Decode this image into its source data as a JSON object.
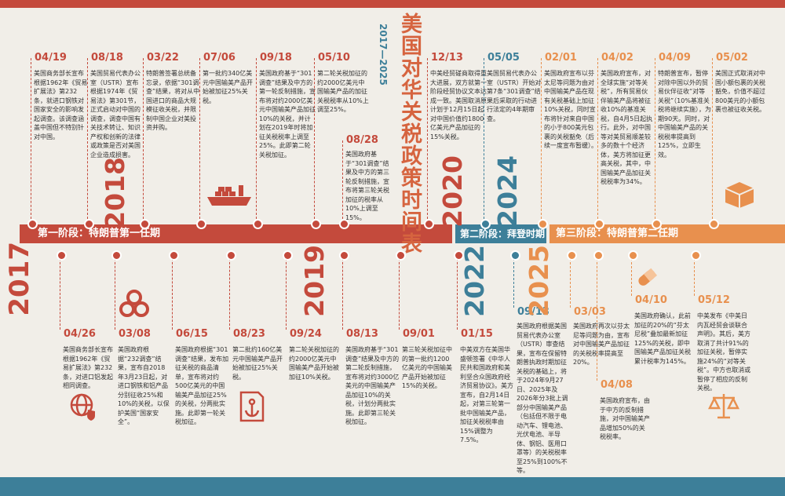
{
  "title": "美国对华关税政策时间表",
  "subtitle": "2017—2025",
  "colors": {
    "red": "#c44a3c",
    "blue": "#3d7f99",
    "orange": "#e8904e"
  },
  "phases": [
    {
      "label": "第一阶段：特朗普第一任期",
      "color": "#c44a3c"
    },
    {
      "label": "第二阶段：拜登时期",
      "color": "#3d7f99"
    },
    {
      "label": "第三阶段：特朗普第二任期",
      "color": "#e8904e"
    }
  ],
  "years": [
    "2017",
    "2018",
    "2019",
    "2020",
    "2022",
    "2024",
    "2025"
  ],
  "events": [
    {
      "date": "04/19",
      "text": "美国商务部长宣布根据1962年《贸易扩展法》第232条，就进口钢铁对国家安全的影响发起调查。该调查涵盖中国但不特别针对中国。",
      "color": "#c44a3c"
    },
    {
      "date": "08/18",
      "text": "美国贸易代表办公室（USTR）宣布根据1974年《贸易法》第301节，正式启动对中国的调查，调查中国有关技术转让、知识产权和创新的法律或政策是否对美国企业造成损害。",
      "color": "#c44a3c"
    },
    {
      "date": "03/22",
      "text": "特朗普签署总统备忘录，依据“301调查”结果，将对从中国进口的商品大规模征收关税，并限制中国企业对美投资并购。",
      "color": "#c44a3c"
    },
    {
      "date": "07/06",
      "text": "第一批约340亿美元中国输美产品开始被加征25%关税。",
      "color": "#c44a3c"
    },
    {
      "date": "09/18",
      "text": "美国政府基于“301调查”结果及中方的第一轮反制措施，宣布将对约2000亿美元中国输美产品加征10%的关税，并计划在2019年时将加征关税税率上调至25%。此即第二轮关税加征。",
      "color": "#c44a3c"
    },
    {
      "date": "05/10",
      "text": "第二轮关税加征的约2000亿美元中国输美产品的加征关税税率从10%上调至25%。",
      "color": "#c44a3c"
    },
    {
      "date": "08/28",
      "text": "美国政府基于“301调查”结果及中方的第三轮反制措施，宣布将第三轮关税加征的税率从10%上调至15%。",
      "color": "#c44a3c"
    },
    {
      "date": "12/13",
      "text": "中美经贸磋商取得重大进展，双方就第一阶段经贸协议文本达成一致。美国取消原计划于12月15日起对中国价值约1800亿美元产品加征的15%关税。",
      "color": "#c44a3c"
    },
    {
      "date": "05/05",
      "text": "美国贸易代表办公室（USTR）开始对第7条“301调查”结果后采取的行动进行法定的4年期审查。",
      "color": "#3d7f99"
    },
    {
      "date": "02/01",
      "text": "美国政府宣布以芬太尼等问题为由对中国输美产品在现有关税基础上加征10%关税，同时宣布将针对来自中国的小于800美元包裹的关税豁免（后续一度宣布暂缓）。",
      "color": "#e8904e"
    },
    {
      "date": "04/02",
      "text": "美国政府宣布，对全球实施“对等关税”，所有贸易伙伴输美产品将被征收10%的基准关税，自4月5日起执行。此外，对中国等对美贸易顺差较多的数十个经济体，美方将加征更高关税，其中，中国输美产品加征关税税率为34%。",
      "color": "#e8904e"
    },
    {
      "date": "04/09",
      "text": "特朗普宣布，暂停对除中国以外的贸易伙伴征收“对等关税”（10%基准关税将继续实施），为期90天。同时，对中国输美产品的关税税率提高到125%，立即生效。",
      "color": "#e8904e"
    },
    {
      "date": "05/02",
      "text": "美国正式取消对中国小额包裹的关税豁免，价值不超过800美元的小额包裹也被征收关税。",
      "color": "#e8904e"
    },
    {
      "date": "04/26",
      "text": "美国商务部长宣布根据1962年《贸易扩展法》第232条，对进口铝发起相同调查。",
      "color": "#c44a3c"
    },
    {
      "date": "03/08",
      "text": "美国政府根据“232调查”结果，宣布自2018年3月23日起，对进口钢铁和铝产品分别征收25%和10%的关税，以保护美国“国家安全”。",
      "color": "#c44a3c"
    },
    {
      "date": "06/15",
      "text": "美国政府根据“301调查”结果，发布加征关税的商品清单，宣布将对约500亿美元的中国输美产品加征25%的关税，分两批实施。此即第一轮关税加征。",
      "color": "#c44a3c"
    },
    {
      "date": "08/23",
      "text": "第二批约160亿美元中国输美产品开始被加征25%关税。",
      "color": "#c44a3c"
    },
    {
      "date": "09/24",
      "text": "第二轮关税加征的约2000亿美元中国输美产品开始被加征10%关税。",
      "color": "#c44a3c"
    },
    {
      "date": "08/13",
      "text": "美国政府基于“301调查”结果及中方的第二轮反制措施，宣布将对约3000亿美元的中国输美产品加征10%的关税，计划分两批实施。此即第三轮关税加征。",
      "color": "#c44a3c"
    },
    {
      "date": "09/01",
      "text": "第三轮关税加征中的第一批约1200亿美元的中国输美产品开始被加征15%的关税。",
      "color": "#c44a3c"
    },
    {
      "date": "01/15",
      "text": "中美双方在美国华盛顿签署《中华人民共和国政府和美利坚合众国政府经济贸易协议》。美方宣布，自2月14日起，对第三轮第一批中国输美产品，加征关税税率由15%调整为7.5%。",
      "color": "#c44a3c"
    },
    {
      "date": "09/13",
      "text": "美国政府根据美国贸易代表办公室（USTR）审查结果，宣布在保留特朗普执政时期加征关税的基础上，将于2024年9月27日、2025年及2026年分3批上调部分中国输美产品（包括但不限于电动汽车、锂电池、光伏电池、半导体、钢铝、医用口罩等）的关税税率至25%到100%不等。",
      "color": "#3d7f99"
    },
    {
      "date": "03/03",
      "text": "美国政府再次以芬太尼等问题为由，宣布对中国输美产品加征的关税税率提高至20%。",
      "color": "#e8904e"
    },
    {
      "date": "04/08",
      "text": "美国政府宣布，由于中方的反制措施，对中国输美产品增加50%的关税税率。",
      "color": "#e8904e"
    },
    {
      "date": "04/10",
      "text": "美国政府确认，此前加征的20%的“芬太尼税”叠加最新加征125%的关税，即中国输美产品加征关税累计税率为145%。",
      "color": "#e8904e"
    },
    {
      "date": "05/12",
      "text": "中美发布《中美日内瓦经贸会谈联合声明》。其后，美方取消了共计91%的加征关税，暂停实施24%的“对等关税”。中方也取消或暂停了相应的反制关税。",
      "color": "#e8904e"
    }
  ],
  "icons": [
    "ship-icon",
    "container-stack-icon",
    "steel-pipes-icon",
    "globe-shield-icon",
    "anchor-document-icon",
    "pill-icon",
    "scales-icon",
    "package-icon"
  ]
}
